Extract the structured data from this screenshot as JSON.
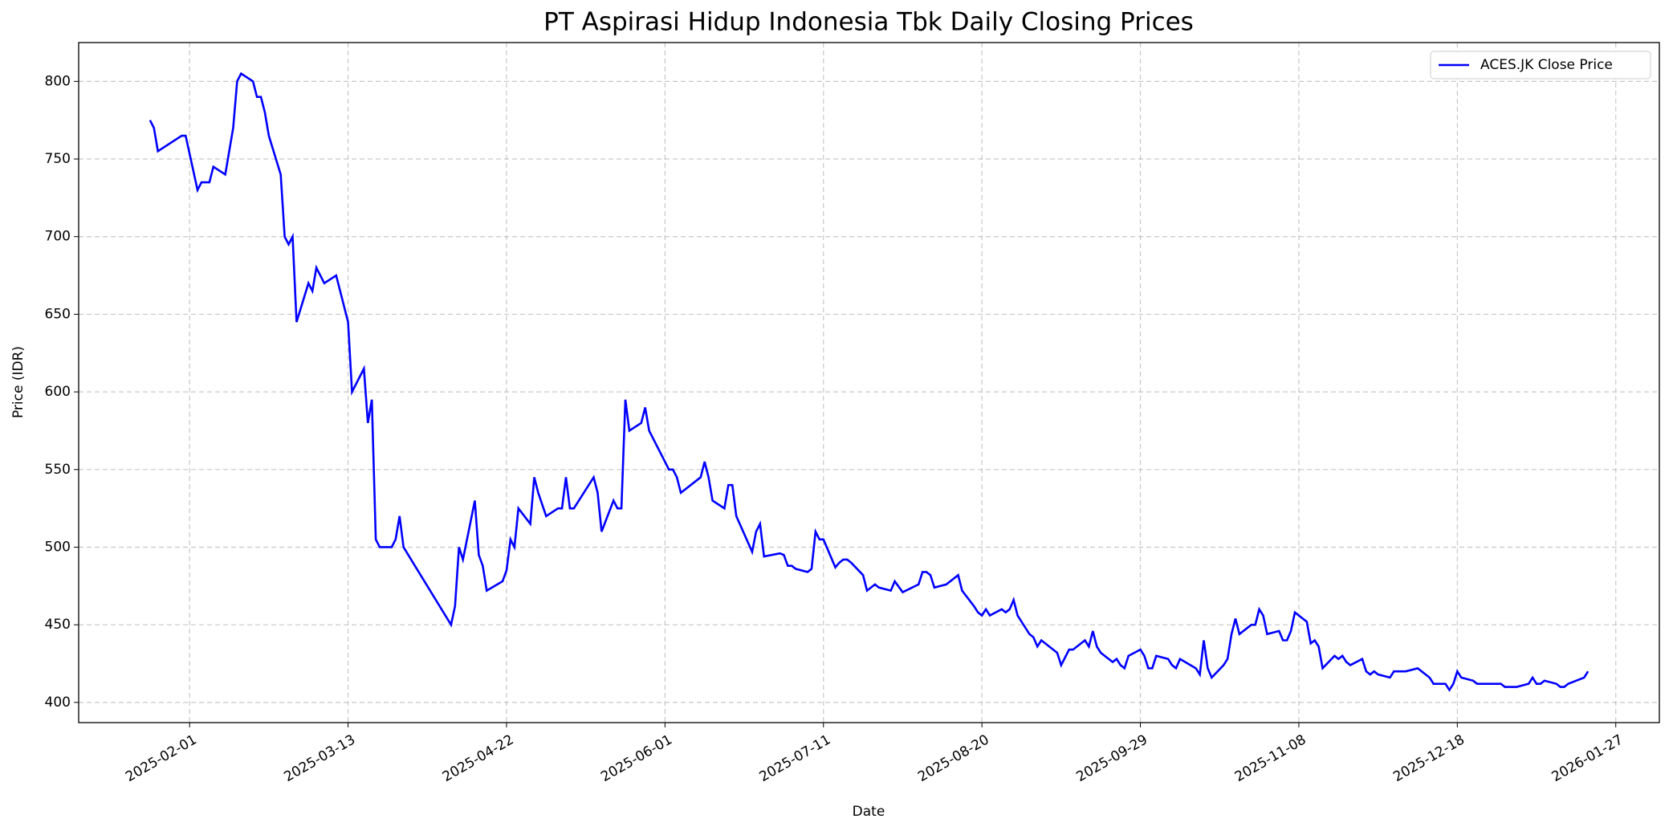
{
  "chart_data": {
    "type": "line",
    "title": "PT Aspirasi Hidup Indonesia Tbk Daily Closing Prices",
    "x_label": "Date",
    "y_label": "Price (IDR)",
    "x": [
      "2025-01-22",
      "2025-01-23",
      "2025-01-24",
      "2025-01-30",
      "2025-01-31",
      "2025-02-03",
      "2025-02-04",
      "2025-02-06",
      "2025-02-07",
      "2025-02-10",
      "2025-02-12",
      "2025-02-13",
      "2025-02-14",
      "2025-02-17",
      "2025-02-18",
      "2025-02-19",
      "2025-02-20",
      "2025-02-21",
      "2025-02-24",
      "2025-02-25",
      "2025-02-26",
      "2025-02-27",
      "2025-02-28",
      "2025-03-03",
      "2025-03-04",
      "2025-03-05",
      "2025-03-07",
      "2025-03-10",
      "2025-03-13",
      "2025-03-14",
      "2025-03-17",
      "2025-03-18",
      "2025-03-19",
      "2025-03-20",
      "2025-03-21",
      "2025-03-24",
      "2025-03-25",
      "2025-03-26",
      "2025-03-27",
      "2025-04-08",
      "2025-04-09",
      "2025-04-10",
      "2025-04-11",
      "2025-04-14",
      "2025-04-15",
      "2025-04-16",
      "2025-04-17",
      "2025-04-21",
      "2025-04-22",
      "2025-04-23",
      "2025-04-24",
      "2025-04-25",
      "2025-04-28",
      "2025-04-29",
      "2025-04-30",
      "2025-05-02",
      "2025-05-05",
      "2025-05-06",
      "2025-05-07",
      "2025-05-08",
      "2025-05-09",
      "2025-05-14",
      "2025-05-15",
      "2025-05-16",
      "2025-05-19",
      "2025-05-20",
      "2025-05-21",
      "2025-05-22",
      "2025-05-23",
      "2025-05-26",
      "2025-05-27",
      "2025-05-28",
      "2025-06-02",
      "2025-06-03",
      "2025-06-04",
      "2025-06-05",
      "2025-06-10",
      "2025-06-11",
      "2025-06-12",
      "2025-06-13",
      "2025-06-16",
      "2025-06-17",
      "2025-06-18",
      "2025-06-19",
      "2025-06-23",
      "2025-06-24",
      "2025-06-25",
      "2025-06-26",
      "2025-06-30",
      "2025-07-01",
      "2025-07-02",
      "2025-07-03",
      "2025-07-04",
      "2025-07-07",
      "2025-07-08",
      "2025-07-09",
      "2025-07-10",
      "2025-07-11",
      "2025-07-14",
      "2025-07-15",
      "2025-07-16",
      "2025-07-17",
      "2025-07-18",
      "2025-07-21",
      "2025-07-22",
      "2025-07-24",
      "2025-07-25",
      "2025-07-28",
      "2025-07-29",
      "2025-07-31",
      "2025-08-04",
      "2025-08-05",
      "2025-08-06",
      "2025-08-07",
      "2025-08-08",
      "2025-08-11",
      "2025-08-14",
      "2025-08-15",
      "2025-08-18",
      "2025-08-19",
      "2025-08-20",
      "2025-08-21",
      "2025-08-22",
      "2025-08-25",
      "2025-08-26",
      "2025-08-27",
      "2025-08-28",
      "2025-08-29",
      "2025-09-01",
      "2025-09-02",
      "2025-09-03",
      "2025-09-04",
      "2025-09-08",
      "2025-09-09",
      "2025-09-11",
      "2025-09-12",
      "2025-09-15",
      "2025-09-16",
      "2025-09-17",
      "2025-09-18",
      "2025-09-19",
      "2025-09-22",
      "2025-09-23",
      "2025-09-24",
      "2025-09-25",
      "2025-09-26",
      "2025-09-29",
      "2025-09-30",
      "2025-10-01",
      "2025-10-02",
      "2025-10-03",
      "2025-10-06",
      "2025-10-07",
      "2025-10-08",
      "2025-10-09",
      "2025-10-13",
      "2025-10-14",
      "2025-10-15",
      "2025-10-16",
      "2025-10-17",
      "2025-10-20",
      "2025-10-21",
      "2025-10-22",
      "2025-10-23",
      "2025-10-24",
      "2025-10-27",
      "2025-10-28",
      "2025-10-29",
      "2025-10-30",
      "2025-10-31",
      "2025-11-03",
      "2025-11-04",
      "2025-11-05",
      "2025-11-06",
      "2025-11-07",
      "2025-11-10",
      "2025-11-11",
      "2025-11-12",
      "2025-11-13",
      "2025-11-14",
      "2025-11-17",
      "2025-11-18",
      "2025-11-19",
      "2025-11-20",
      "2025-11-21",
      "2025-11-24",
      "2025-11-25",
      "2025-11-26",
      "2025-11-27",
      "2025-11-28",
      "2025-12-01",
      "2025-12-02",
      "2025-12-05",
      "2025-12-08",
      "2025-12-11",
      "2025-12-12",
      "2025-12-15",
      "2025-12-16",
      "2025-12-17",
      "2025-12-18",
      "2025-12-19",
      "2025-12-22",
      "2025-12-23",
      "2025-12-29",
      "2025-12-30",
      "2026-01-02",
      "2026-01-05",
      "2026-01-06",
      "2026-01-07",
      "2026-01-08",
      "2026-01-09",
      "2026-01-12",
      "2026-01-13",
      "2026-01-14",
      "2026-01-15",
      "2026-01-19",
      "2026-01-20"
    ],
    "series": [
      {
        "name": "ACES.JK Close Price",
        "color": "#0000ff",
        "values": [
          775,
          770,
          755,
          765,
          765,
          730,
          735,
          735,
          745,
          740,
          770,
          800,
          805,
          800,
          790,
          790,
          780,
          765,
          740,
          700,
          695,
          700,
          645,
          670,
          665,
          680,
          670,
          675,
          645,
          600,
          615,
          580,
          595,
          505,
          500,
          500,
          505,
          520,
          500,
          450,
          462,
          500,
          492,
          530,
          495,
          488,
          472,
          478,
          485,
          505,
          500,
          525,
          515,
          545,
          535,
          520,
          525,
          525,
          545,
          525,
          525,
          545,
          535,
          510,
          530,
          525,
          525,
          595,
          575,
          580,
          590,
          575,
          550,
          550,
          545,
          535,
          545,
          555,
          545,
          530,
          525,
          540,
          540,
          520,
          497,
          510,
          515,
          494,
          496,
          495,
          488,
          488,
          486,
          484,
          486,
          510,
          505,
          505,
          487,
          490,
          492,
          492,
          490,
          482,
          472,
          476,
          474,
          472,
          478,
          471,
          476,
          484,
          484,
          482,
          474,
          476,
          482,
          472,
          462,
          458,
          456,
          460,
          456,
          460,
          458,
          460,
          466,
          456,
          444,
          442,
          436,
          440,
          432,
          424,
          434,
          434,
          440,
          436,
          446,
          436,
          432,
          426,
          428,
          424,
          422,
          430,
          434,
          430,
          422,
          422,
          430,
          428,
          424,
          422,
          428,
          422,
          418,
          440,
          422,
          416,
          424,
          428,
          444,
          454,
          444,
          450,
          450,
          460,
          456,
          444,
          446,
          440,
          440,
          446,
          458,
          452,
          438,
          440,
          436,
          422,
          430,
          428,
          430,
          426,
          424,
          428,
          420,
          418,
          420,
          418,
          416,
          420,
          420,
          422,
          416,
          412,
          412,
          408,
          412,
          420,
          416,
          414,
          412,
          412,
          410,
          410,
          412,
          416,
          412,
          412,
          414,
          412,
          410,
          410,
          412,
          416,
          420
        ]
      }
    ],
    "xlim": [
      "2025-01-04",
      "2026-02-07"
    ],
    "xticks": [
      "2025-02-01",
      "2025-03-13",
      "2025-04-22",
      "2025-06-01",
      "2025-07-11",
      "2025-08-20",
      "2025-09-29",
      "2025-11-08",
      "2025-12-18",
      "2026-01-27"
    ],
    "ylim": [
      387,
      825
    ],
    "yticks": [
      400,
      450,
      500,
      550,
      600,
      650,
      700,
      750,
      800
    ],
    "grid": true,
    "legend": "upper right"
  }
}
